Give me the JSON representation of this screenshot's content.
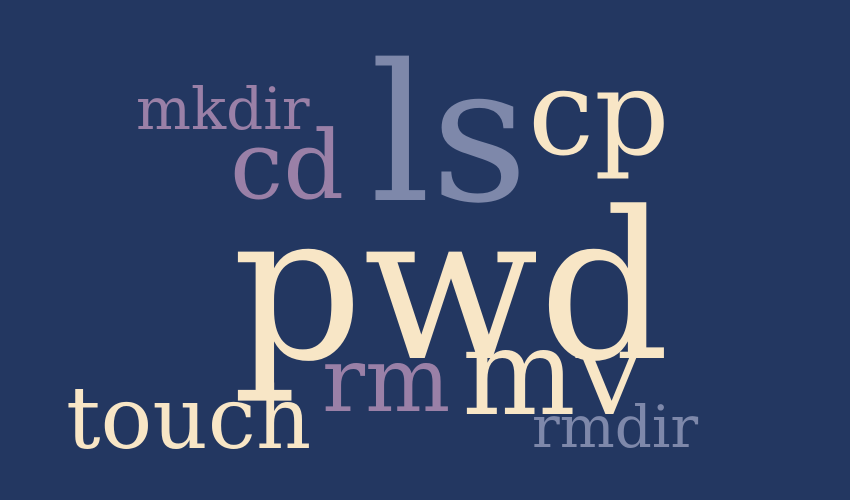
{
  "background_color": "#233761",
  "palette": {
    "cream": "#f8e6c6",
    "purple": "#9a80a7",
    "slate": "#7e88aa"
  },
  "words": {
    "mkdir": "mkdir",
    "cd": "cd",
    "ls": "ls",
    "cp": "cp",
    "pwd": "pwd",
    "rm": "rm",
    "mv": "mv",
    "touch": "touch",
    "rmdir": "rmdir"
  }
}
